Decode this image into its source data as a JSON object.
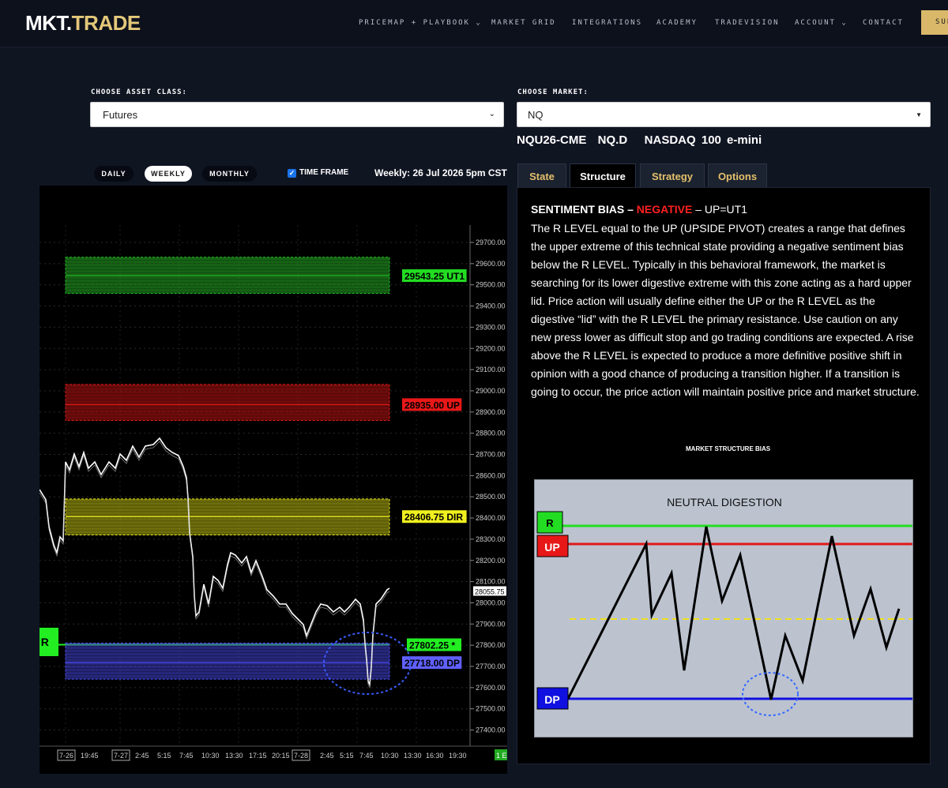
{
  "nav": {
    "logo_part1": "MKT.",
    "logo_part2": "TRADE",
    "items": [
      "PRICEMAP + PLAYBOOK ⌄",
      "MARKET GRID",
      "INTEGRATIONS",
      "ACADEMY",
      "TRADEVISION",
      "ACCOUNT ⌄",
      "CONTACT"
    ],
    "subscribe_label": "SUB"
  },
  "controls": {
    "asset_class_label": "CHOOSE ASSET CLASS:",
    "asset_class_value": "Futures",
    "market_label": "CHOOSE MARKET:",
    "market_value": "NQ",
    "market_info": "NQU26-CME  NQ.D   NASDAQ 100 e-mini",
    "timeframes": [
      "DAILY",
      "WEEKLY",
      "MONTHLY"
    ],
    "active_timeframe": "WEEKLY",
    "timeframe_checkbox_label": "TIME FRAME",
    "weekly_label": "Weekly: 26 Jul 2026 5pm CST"
  },
  "chart": {
    "price_axis": [
      "29700.00",
      "29600.00",
      "29500.00",
      "29400.00",
      "29300.00",
      "29200.00",
      "29100.00",
      "29000.00",
      "28900.00",
      "28800.00",
      "28700.00",
      "28600.00",
      "28500.00",
      "28400.00",
      "28300.00",
      "28200.00",
      "28100.00",
      "28000.00",
      "27900.00",
      "27800.00",
      "27700.00",
      "27600.00",
      "27500.00",
      "27400.00"
    ],
    "time_axis": [
      {
        "label": "7-26",
        "boxed": true
      },
      {
        "label": "19:45",
        "boxed": false
      },
      {
        "label": "7-27",
        "boxed": true
      },
      {
        "label": "2:45",
        "boxed": false
      },
      {
        "label": "5:15",
        "boxed": false
      },
      {
        "label": "7:45",
        "boxed": false
      },
      {
        "label": "10:30",
        "boxed": false
      },
      {
        "label": "13:30",
        "boxed": false
      },
      {
        "label": "17:15",
        "boxed": false
      },
      {
        "label": "20:15",
        "boxed": false
      },
      {
        "label": "7-28",
        "boxed": true
      },
      {
        "label": "2:45",
        "boxed": false
      },
      {
        "label": "5:15",
        "boxed": false
      },
      {
        "label": "7:45",
        "boxed": false
      },
      {
        "label": "10:30",
        "boxed": false
      },
      {
        "label": "13:30",
        "boxed": false
      },
      {
        "label": "16:30",
        "boxed": false
      },
      {
        "label": "19:30",
        "boxed": false
      }
    ],
    "last_price": "28055.75",
    "interval_badge": "1 E",
    "levels": [
      {
        "label": "29543.25 UT1",
        "price": 29543.25,
        "zone": [
          29460,
          29630
        ],
        "color": "#22c022",
        "label_bg": "#22dd22"
      },
      {
        "label": "28935.00 UP",
        "price": 28935,
        "zone": [
          28860,
          29030
        ],
        "color": "#e01818",
        "label_bg": "#e81818"
      },
      {
        "label": "28406.75 DIR",
        "price": 28406.75,
        "zone": [
          28320,
          28490
        ],
        "color": "#e8e820",
        "label_bg": "#f0f020"
      },
      {
        "label": "27802.25 *",
        "price": 27802.25,
        "zone": null,
        "color": "#22ee22",
        "label_bg": "#22ee22"
      },
      {
        "label": "27718.00 DP",
        "price": 27718,
        "zone": [
          27640,
          27810
        ],
        "color": "#5050ff",
        "label_bg": "#6060ff"
      }
    ],
    "mr_label": "M R"
  },
  "tabs": [
    "State",
    "Structure",
    "Strategy",
    "Options"
  ],
  "active_tab": "Structure",
  "panel": {
    "bias_prefix": "SENTIMENT BIAS – ",
    "bias_value": "NEGATIVE",
    "bias_suffix": " – UP=UT1",
    "description": "The R LEVEL equal to the UP (UPSIDE PIVOT) creates a range that defines the upper extreme of this technical state providing a negative sentiment bias below the R LEVEL. Typically in this behavioral framework, the market is searching for its lower digestive extreme with this zone acting as a hard upper lid. Price action will usually define either the UP or the R LEVEL as the digestive “lid” with the R LEVEL the primary resistance. Use caution on any new press lower as difficult stop and go trading conditions are expected. A rise above the R LEVEL is expected to produce a more definitive positive shift in opinion with a good chance of producing a transition higher. If a transition is going to occur, the price action will maintain positive price and market structure.",
    "structure_heading": "MARKET STRUCTURE BIAS",
    "diagram_title": "NEUTRAL DIGESTION",
    "diagram_labels": {
      "r": "R",
      "up": "UP",
      "dp": "DP"
    }
  },
  "colors": {
    "gold": "#e3c87a",
    "negative": "#ff2020",
    "tab_text": "#e4c06b"
  }
}
